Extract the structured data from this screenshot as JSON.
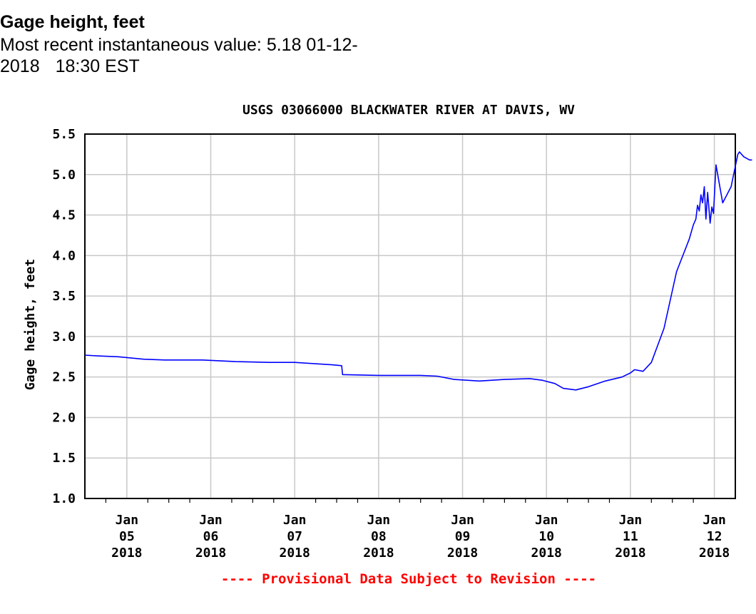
{
  "header": {
    "title": "Gage height, feet",
    "recent_line_1": "Most recent instantaneous value: 5.18 01-12-",
    "recent_date_part": "2018",
    "recent_time_part": "18:30 EST"
  },
  "chart_data": {
    "type": "line",
    "title": "USGS 03066000 BLACKWATER RIVER AT DAVIS, WV",
    "xlabel": "",
    "ylabel": "Gage height, feet",
    "ylim": [
      1.0,
      5.5
    ],
    "xlim": [
      4.5,
      12.25
    ],
    "grid": true,
    "line_color": "#0000ff",
    "grid_color": "#c8c8c8",
    "footer_color": "#ff0000",
    "y_ticks": [
      1.0,
      1.5,
      2.0,
      2.5,
      3.0,
      3.5,
      4.0,
      4.5,
      5.0,
      5.5
    ],
    "y_tick_labels": [
      "1.0",
      "1.5",
      "2.0",
      "2.5",
      "3.0",
      "3.5",
      "4.0",
      "4.5",
      "5.0",
      "5.5"
    ],
    "x_ticks": [
      {
        "value": 5,
        "lines": [
          "Jan",
          "05",
          "2018"
        ]
      },
      {
        "value": 6,
        "lines": [
          "Jan",
          "06",
          "2018"
        ]
      },
      {
        "value": 7,
        "lines": [
          "Jan",
          "07",
          "2018"
        ]
      },
      {
        "value": 8,
        "lines": [
          "Jan",
          "08",
          "2018"
        ]
      },
      {
        "value": 9,
        "lines": [
          "Jan",
          "09",
          "2018"
        ]
      },
      {
        "value": 10,
        "lines": [
          "Jan",
          "10",
          "2018"
        ]
      },
      {
        "value": 11,
        "lines": [
          "Jan",
          "11",
          "2018"
        ]
      },
      {
        "value": 12,
        "lines": [
          "Jan",
          "12",
          "2018"
        ]
      }
    ],
    "series": [
      {
        "name": "Gage height",
        "x": [
          4.5,
          4.65,
          4.9,
          5.2,
          5.45,
          5.9,
          6.3,
          6.7,
          7.0,
          7.45,
          7.56,
          7.57,
          8.0,
          8.5,
          8.7,
          8.9,
          9.2,
          9.5,
          9.8,
          9.95,
          10.1,
          10.2,
          10.35,
          10.5,
          10.7,
          10.9,
          11.0,
          11.05,
          11.15,
          11.25,
          11.4,
          11.55,
          11.7,
          11.75,
          11.78,
          11.8,
          11.82,
          11.84,
          11.86,
          11.88,
          11.9,
          11.92,
          11.95,
          11.97,
          11.99,
          12.02,
          12.1,
          12.2,
          12.28
        ],
        "y": [
          2.77,
          2.76,
          2.75,
          2.72,
          2.71,
          2.71,
          2.69,
          2.68,
          2.68,
          2.65,
          2.64,
          2.53,
          2.52,
          2.52,
          2.51,
          2.47,
          2.45,
          2.47,
          2.48,
          2.46,
          2.42,
          2.36,
          2.34,
          2.38,
          2.45,
          2.5,
          2.55,
          2.59,
          2.57,
          2.68,
          3.1,
          3.8,
          4.2,
          4.38,
          4.45,
          4.62,
          4.55,
          4.75,
          4.65,
          4.85,
          4.45,
          4.78,
          4.4,
          4.6,
          4.52,
          5.12,
          4.65,
          4.85,
          5.25
        ]
      },
      {
        "name": "Gage height tail",
        "x": [
          12.28,
          12.3,
          12.35,
          12.42,
          12.45
        ],
        "y": [
          5.25,
          5.28,
          5.22,
          5.18,
          5.18
        ]
      }
    ],
    "footer_text": "---- Provisional Data Subject to Revision ----"
  }
}
